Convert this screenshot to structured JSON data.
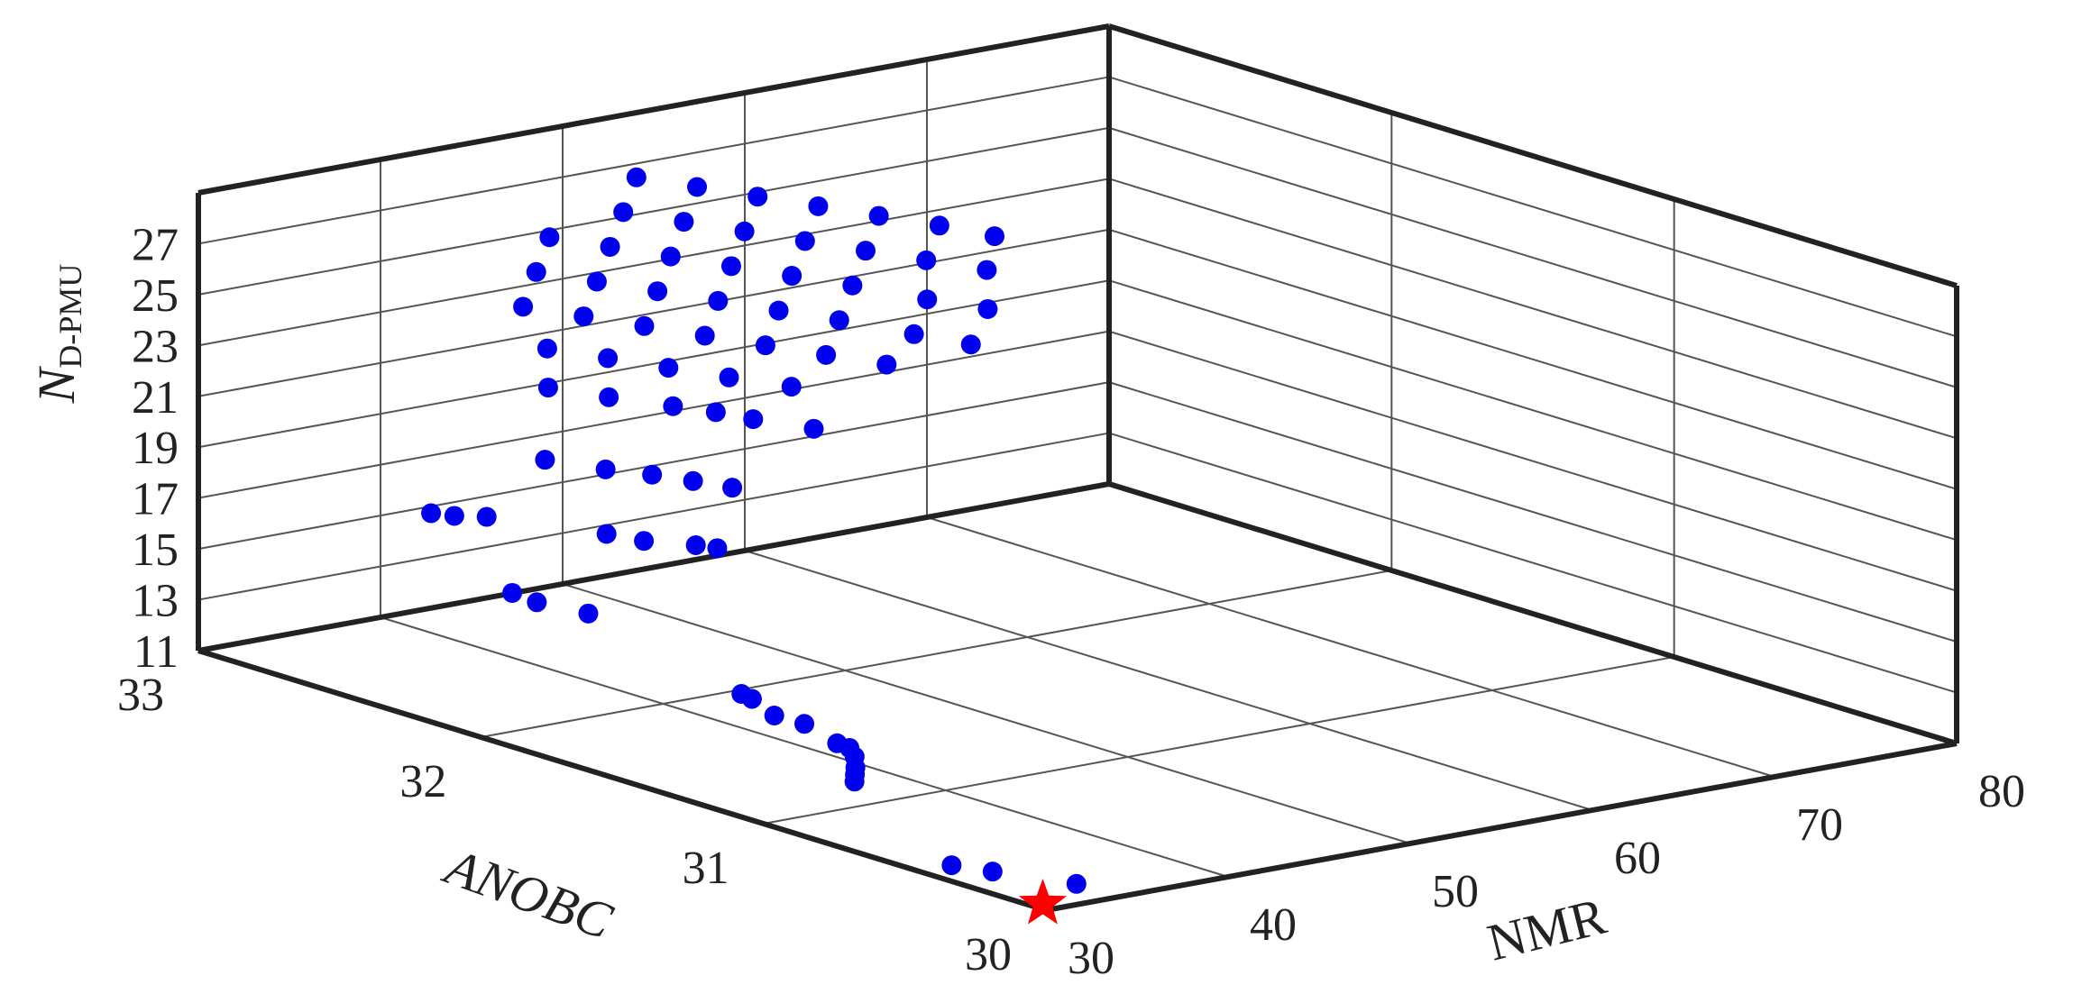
{
  "chart_data": {
    "type": "scatter",
    "dims": 3,
    "xlabel": "ANOBC",
    "ylabel": "NMR",
    "zlabel_main": "N",
    "zlabel_sub": "D-PMU",
    "xlim": [
      30,
      33
    ],
    "ylim": [
      30,
      80
    ],
    "zlim": [
      11,
      29
    ],
    "xticks": [
      "30",
      "31",
      "32",
      "33"
    ],
    "yticks": [
      "30",
      "40",
      "50",
      "60",
      "70",
      "80"
    ],
    "zticks": [
      "11",
      "13",
      "15",
      "17",
      "19",
      "21",
      "23",
      "25",
      "27"
    ],
    "grid": true,
    "marker_color": "#0000ee",
    "highlight_color": "#ff0000",
    "points": [
      [
        30.15,
        34.0,
        11
      ],
      [
        30.35,
        32.5,
        11
      ],
      [
        30.45,
        31.8,
        11
      ],
      [
        31.0,
        35.0,
        12
      ],
      [
        31.05,
        35.8,
        12
      ],
      [
        31.1,
        36.6,
        12
      ],
      [
        31.18,
        37.8,
        12
      ],
      [
        31.25,
        38.6,
        12
      ],
      [
        31.3,
        38.7,
        12
      ],
      [
        31.3,
        36.9,
        13
      ],
      [
        31.4,
        36.8,
        13
      ],
      [
        31.55,
        37.9,
        13
      ],
      [
        31.6,
        38.1,
        13
      ],
      [
        32.2,
        39.0,
        14
      ],
      [
        32.35,
        38.5,
        14
      ],
      [
        32.45,
        38.7,
        14
      ],
      [
        32.95,
        42.0,
        15
      ],
      [
        32.9,
        42.5,
        15
      ],
      [
        32.85,
        43.5,
        15
      ],
      [
        32.2,
        40.0,
        17
      ],
      [
        32.1,
        40.5,
        17
      ],
      [
        32.0,
        41.8,
        17
      ],
      [
        31.95,
        42.2,
        17
      ],
      [
        32.45,
        40.5,
        19
      ],
      [
        32.3,
        41.5,
        19
      ],
      [
        32.2,
        42.5,
        19
      ],
      [
        32.1,
        43.2,
        19
      ],
      [
        32.0,
        43.8,
        19
      ],
      [
        32.6,
        43.0,
        21
      ],
      [
        32.45,
        44.0,
        21
      ],
      [
        32.3,
        45.2,
        21
      ],
      [
        32.2,
        46.0,
        21
      ],
      [
        32.1,
        46.5,
        21
      ],
      [
        31.95,
        47.5,
        21
      ],
      [
        32.7,
        44.5,
        22
      ],
      [
        32.55,
        45.5,
        22
      ],
      [
        32.4,
        46.5,
        22
      ],
      [
        32.25,
        47.5,
        22
      ],
      [
        32.1,
        48.6,
        22
      ],
      [
        32.85,
        45.5,
        23
      ],
      [
        32.7,
        46.5,
        23
      ],
      [
        32.55,
        47.5,
        23
      ],
      [
        32.4,
        48.5,
        23
      ],
      [
        32.25,
        49.5,
        23
      ],
      [
        32.1,
        50.5,
        23
      ],
      [
        31.95,
        51.5,
        23
      ],
      [
        32.9,
        47.0,
        24
      ],
      [
        32.75,
        48.0,
        24
      ],
      [
        32.6,
        49.0,
        24
      ],
      [
        32.45,
        50.0,
        24
      ],
      [
        32.3,
        51.0,
        24
      ],
      [
        32.15,
        52.0,
        24
      ],
      [
        31.95,
        53.0,
        24
      ],
      [
        31.8,
        53.8,
        24
      ],
      [
        32.95,
        48.5,
        25
      ],
      [
        32.8,
        49.5,
        25
      ],
      [
        32.65,
        50.5,
        25
      ],
      [
        32.5,
        51.5,
        25
      ],
      [
        32.35,
        52.5,
        25
      ],
      [
        32.2,
        53.5,
        25
      ],
      [
        32.0,
        54.5,
        25
      ],
      [
        31.85,
        55.5,
        25
      ],
      [
        32.85,
        51.0,
        26
      ],
      [
        32.7,
        52.0,
        26
      ],
      [
        32.55,
        53.0,
        26
      ],
      [
        32.4,
        54.0,
        26
      ],
      [
        32.25,
        55.0,
        26
      ],
      [
        32.1,
        56.0,
        26
      ],
      [
        31.95,
        57.0,
        26
      ],
      [
        32.9,
        52.5,
        27
      ],
      [
        32.75,
        53.5,
        27
      ],
      [
        32.6,
        54.5,
        27
      ],
      [
        32.45,
        55.5,
        27
      ],
      [
        32.3,
        56.5,
        27
      ],
      [
        32.15,
        57.5,
        27
      ],
      [
        32.0,
        58.2,
        27
      ]
    ],
    "highlight_point": [
      30.05,
      30.6,
      11
    ]
  }
}
